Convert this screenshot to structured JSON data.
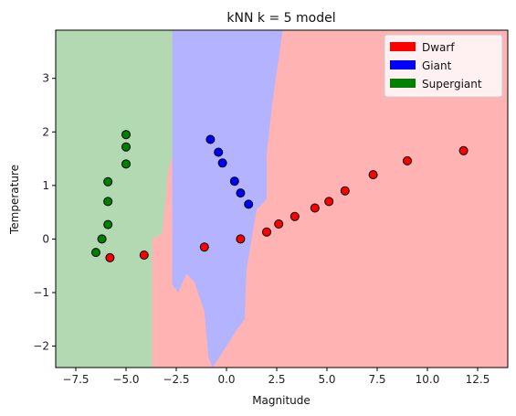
{
  "chart_data": {
    "type": "scatter",
    "title": "kNN k = 5 model",
    "xlabel": "Magnitude",
    "ylabel": "Temperature",
    "xlim": [
      -8.5,
      14.0
    ],
    "ylim": [
      -2.4,
      3.9
    ],
    "xticks": [
      -7.5,
      -5.0,
      -2.5,
      0.0,
      2.5,
      5.0,
      7.5,
      10.0,
      12.5
    ],
    "xtick_labels": [
      "−7.5",
      "−5.0",
      "−2.5",
      "0.0",
      "2.5",
      "5.0",
      "7.5",
      "10.0",
      "12.5"
    ],
    "yticks": [
      -2,
      -1,
      0,
      1,
      2,
      3
    ],
    "ytick_labels": [
      "−2",
      "−1",
      "0",
      "1",
      "2",
      "3"
    ],
    "grid": false,
    "legend_position": "top-right",
    "background_regions": [
      {
        "class": "Supergiant",
        "color": "#b3d9b3",
        "boundary": [
          [
            -8.5,
            3.9
          ],
          [
            -2.7,
            3.9
          ],
          [
            -2.7,
            1.55
          ],
          [
            -2.9,
            1.3
          ],
          [
            -3.2,
            0.1
          ],
          [
            -3.7,
            0.0
          ],
          [
            -3.7,
            -2.4
          ],
          [
            -8.5,
            -2.4
          ]
        ]
      },
      {
        "class": "Giant",
        "color": "#b3b3ff",
        "boundary": [
          [
            -2.7,
            3.9
          ],
          [
            2.8,
            3.9
          ],
          [
            2.3,
            2.6
          ],
          [
            2.0,
            1.6
          ],
          [
            2.0,
            0.75
          ],
          [
            1.5,
            0.55
          ],
          [
            1.0,
            -0.55
          ],
          [
            0.9,
            -1.5
          ],
          [
            0.5,
            -1.7
          ],
          [
            0.0,
            -2.0
          ],
          [
            -0.7,
            -2.4
          ],
          [
            -0.9,
            -2.2
          ],
          [
            -1.1,
            -1.35
          ],
          [
            -1.6,
            -0.8
          ],
          [
            -2.0,
            -0.65
          ],
          [
            -2.4,
            -1.0
          ],
          [
            -2.7,
            -0.85
          ],
          [
            -2.7,
            1.55
          ]
        ]
      }
    ],
    "background_default": {
      "class": "Dwarf",
      "color": "#ffb3b3"
    },
    "series": [
      {
        "name": "Dwarf",
        "color": "#ff0000",
        "x": [
          -5.8,
          -4.1,
          -1.1,
          0.7,
          2.0,
          2.6,
          3.4,
          4.4,
          5.1,
          5.9,
          7.3,
          9.0,
          11.8
        ],
        "y": [
          -0.35,
          -0.3,
          -0.15,
          0.0,
          0.13,
          0.28,
          0.42,
          0.58,
          0.7,
          0.9,
          1.2,
          1.46,
          1.65
        ]
      },
      {
        "name": "Giant",
        "color": "#0000ff",
        "x": [
          -0.8,
          -0.4,
          -0.2,
          0.4,
          0.7,
          1.1
        ],
        "y": [
          1.86,
          1.62,
          1.42,
          1.08,
          0.86,
          0.65
        ]
      },
      {
        "name": "Supergiant",
        "color": "#008000",
        "x": [
          -5.0,
          -5.0,
          -5.0,
          -5.9,
          -5.9,
          -5.9,
          -6.2,
          -6.5
        ],
        "y": [
          1.95,
          1.72,
          1.4,
          1.07,
          0.7,
          0.27,
          0.0,
          -0.25
        ]
      }
    ]
  }
}
